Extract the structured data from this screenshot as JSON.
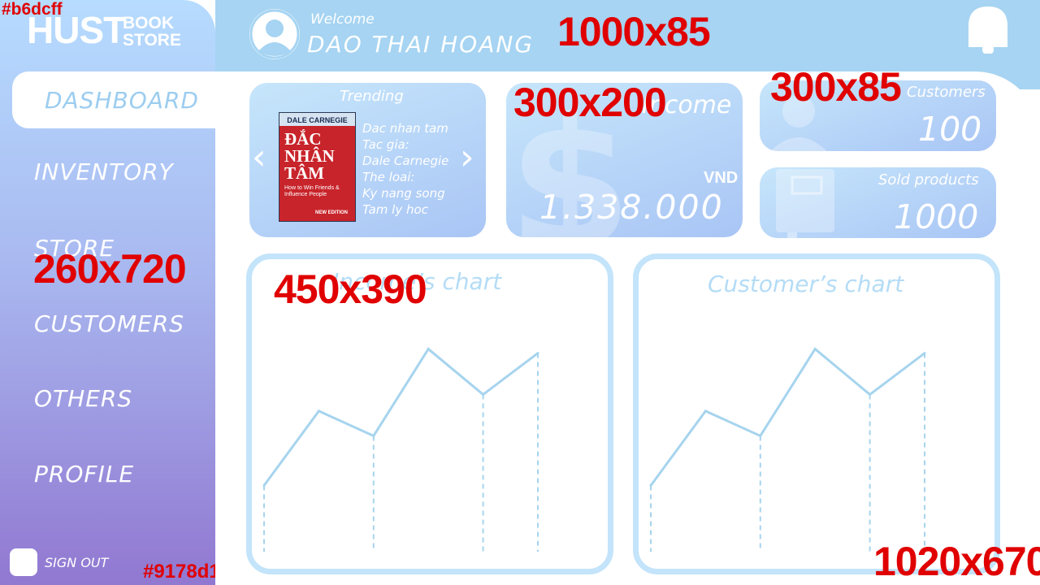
{
  "colors": {
    "sidebar_top": "#b6dcff",
    "sidebar_bottom": "#9178d1",
    "header": "#a6d4f2",
    "accent_text": "#9ccdf0",
    "chart_line": "#a6d4ee",
    "label_red": "#e00000"
  },
  "sidebar": {
    "logo_big": "HUST",
    "logo_small_1": "BOOK",
    "logo_small_2": "STORE",
    "color_label_top": "#b6dcff",
    "size_label": "260x720",
    "color_label_bottom": "#9178d1",
    "items": [
      {
        "label": "DASHBOARD",
        "active": true
      },
      {
        "label": "INVENTORY"
      },
      {
        "label": "STORE"
      },
      {
        "label": "CUSTOMERS"
      },
      {
        "label": "OTHERS"
      },
      {
        "label": "PROFILE"
      }
    ],
    "signout": "SIGN OUT"
  },
  "header": {
    "welcome": "Welcome",
    "username": "DAO THAI HOANG",
    "size_label": "1000x85",
    "icons": {
      "avatar": "user-icon",
      "bell": "bell-icon"
    }
  },
  "trending": {
    "title": "Trending",
    "book_cover": {
      "author": "DALE CARNEGIE",
      "title_line1": "ĐẮC",
      "title_line2": "NHÂN",
      "title_line3": "TÂM",
      "subtitle": "How to Win Friends & Influence People",
      "edition": "NEW EDITION"
    },
    "info": [
      "Dac nhan tam",
      "Tac gia:",
      "Dale Carnegie",
      "The loai:",
      "Ky nang song",
      "Tam ly hoc"
    ],
    "dots": 8
  },
  "income": {
    "title": "Income",
    "currency": "VND",
    "value": "1.338.000",
    "size_label": "300x200"
  },
  "customers": {
    "title": "Customers",
    "value": "100",
    "size_label": "300x85"
  },
  "sold": {
    "title": "Sold products",
    "value": "1000"
  },
  "charts": {
    "left_title": "Income’s chart",
    "left_size_label": "450x390",
    "right_title": "Customer’s chart",
    "page_size_label": "1020x670"
  },
  "chart_data": [
    {
      "type": "line",
      "title": "Income’s chart",
      "x": [
        1,
        2,
        3,
        4,
        5,
        6
      ],
      "values": [
        1.6,
        3.4,
        2.8,
        4.9,
        3.8,
        4.8
      ]
    },
    {
      "type": "line",
      "title": "Customer’s chart",
      "x": [
        1,
        2,
        3,
        4,
        5,
        6
      ],
      "values": [
        1.6,
        3.4,
        2.8,
        4.9,
        3.8,
        4.8
      ]
    }
  ]
}
